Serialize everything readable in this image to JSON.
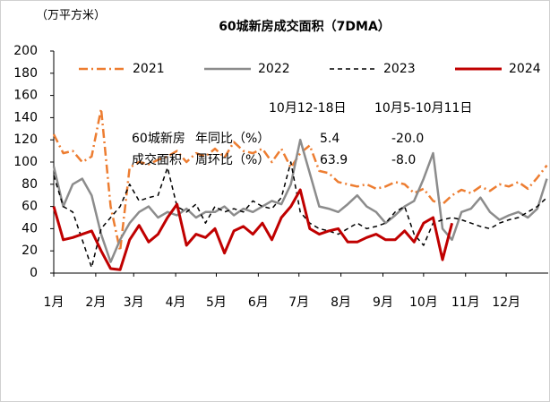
{
  "chart_data": {
    "type": "line",
    "title": "60城新房成交面积（7DMA）",
    "y_label": "（万平方米）",
    "x": [
      0,
      7,
      14,
      21,
      28,
      35,
      42,
      49,
      56,
      63,
      70,
      77,
      84,
      91,
      98,
      105,
      112,
      119,
      126,
      133,
      140,
      147,
      154,
      161,
      168,
      175,
      182,
      189,
      196,
      203,
      210,
      217,
      224,
      231,
      238,
      245,
      252,
      259,
      266,
      273,
      280,
      287,
      294,
      301,
      308,
      315,
      322,
      329,
      336,
      343,
      350,
      357,
      364
    ],
    "xlim": [
      0,
      365
    ],
    "xticks": [
      {
        "value": 0,
        "label": "1月"
      },
      {
        "value": 31,
        "label": "2月"
      },
      {
        "value": 59,
        "label": "3月"
      },
      {
        "value": 90,
        "label": "4月"
      },
      {
        "value": 120,
        "label": "5月"
      },
      {
        "value": 151,
        "label": "6月"
      },
      {
        "value": 181,
        "label": "7月"
      },
      {
        "value": 212,
        "label": "8月"
      },
      {
        "value": 243,
        "label": "9月"
      },
      {
        "value": 273,
        "label": "10月"
      },
      {
        "value": 304,
        "label": "11月"
      },
      {
        "value": 334,
        "label": "12月"
      }
    ],
    "ylim": [
      0,
      200
    ],
    "yticks": [
      0,
      20,
      40,
      60,
      80,
      100,
      120,
      140,
      160,
      180,
      200
    ],
    "series": [
      {
        "name": "2021",
        "color": "#ED7D31",
        "style": "dashdot",
        "values": [
          125,
          108,
          110,
          100,
          105,
          148,
          60,
          20,
          95,
          100,
          98,
          102,
          105,
          110,
          100,
          108,
          105,
          112,
          104,
          118,
          110,
          108,
          112,
          100,
          112,
          95,
          108,
          115,
          92,
          90,
          82,
          80,
          78,
          80,
          76,
          78,
          82,
          80,
          72,
          76,
          65,
          62,
          70,
          75,
          72,
          78,
          74,
          80,
          78,
          82,
          76,
          86,
          97
        ]
      },
      {
        "name": "2022",
        "color": "#8C8C8C",
        "style": "solid",
        "values": [
          96,
          60,
          80,
          85,
          70,
          35,
          10,
          30,
          45,
          55,
          60,
          50,
          55,
          52,
          58,
          50,
          55,
          55,
          60,
          52,
          58,
          55,
          60,
          65,
          62,
          80,
          120,
          90,
          60,
          58,
          55,
          62,
          70,
          60,
          55,
          45,
          52,
          60,
          65,
          85,
          108,
          40,
          30,
          55,
          58,
          68,
          55,
          48,
          52,
          55,
          50,
          58,
          85
        ]
      },
      {
        "name": "2023",
        "color": "#000000",
        "style": "dashed",
        "values": [
          88,
          60,
          55,
          30,
          5,
          40,
          50,
          60,
          80,
          65,
          68,
          70,
          95,
          60,
          55,
          62,
          45,
          60,
          55,
          58,
          55,
          65,
          60,
          58,
          68,
          100,
          55,
          45,
          40,
          38,
          35,
          40,
          45,
          40,
          42,
          45,
          55,
          60,
          35,
          25,
          45,
          48,
          50,
          48,
          45,
          42,
          40,
          45,
          48,
          50,
          55,
          60,
          68
        ]
      },
      {
        "name": "2024",
        "color": "#C00000",
        "style": "thick",
        "values": [
          60,
          30,
          32,
          35,
          38,
          20,
          4,
          3,
          30,
          43,
          28,
          35,
          50,
          62,
          25,
          35,
          32,
          40,
          18,
          38,
          42,
          35,
          45,
          30,
          50,
          60,
          75,
          40,
          35,
          38,
          40,
          28,
          28,
          32,
          35,
          30,
          30,
          38,
          28,
          45,
          50,
          12,
          45,
          null,
          null,
          null,
          null,
          null,
          null,
          null,
          null,
          null,
          null
        ]
      }
    ],
    "table": {
      "header": [
        "10月12-18日",
        "10月5-10月11日"
      ],
      "rows": [
        [
          "60城新房",
          "年同比（%）",
          "5.4",
          "-20.0"
        ],
        [
          "成交面积",
          "周环比（%）",
          "63.9",
          "-8.0"
        ]
      ]
    }
  }
}
